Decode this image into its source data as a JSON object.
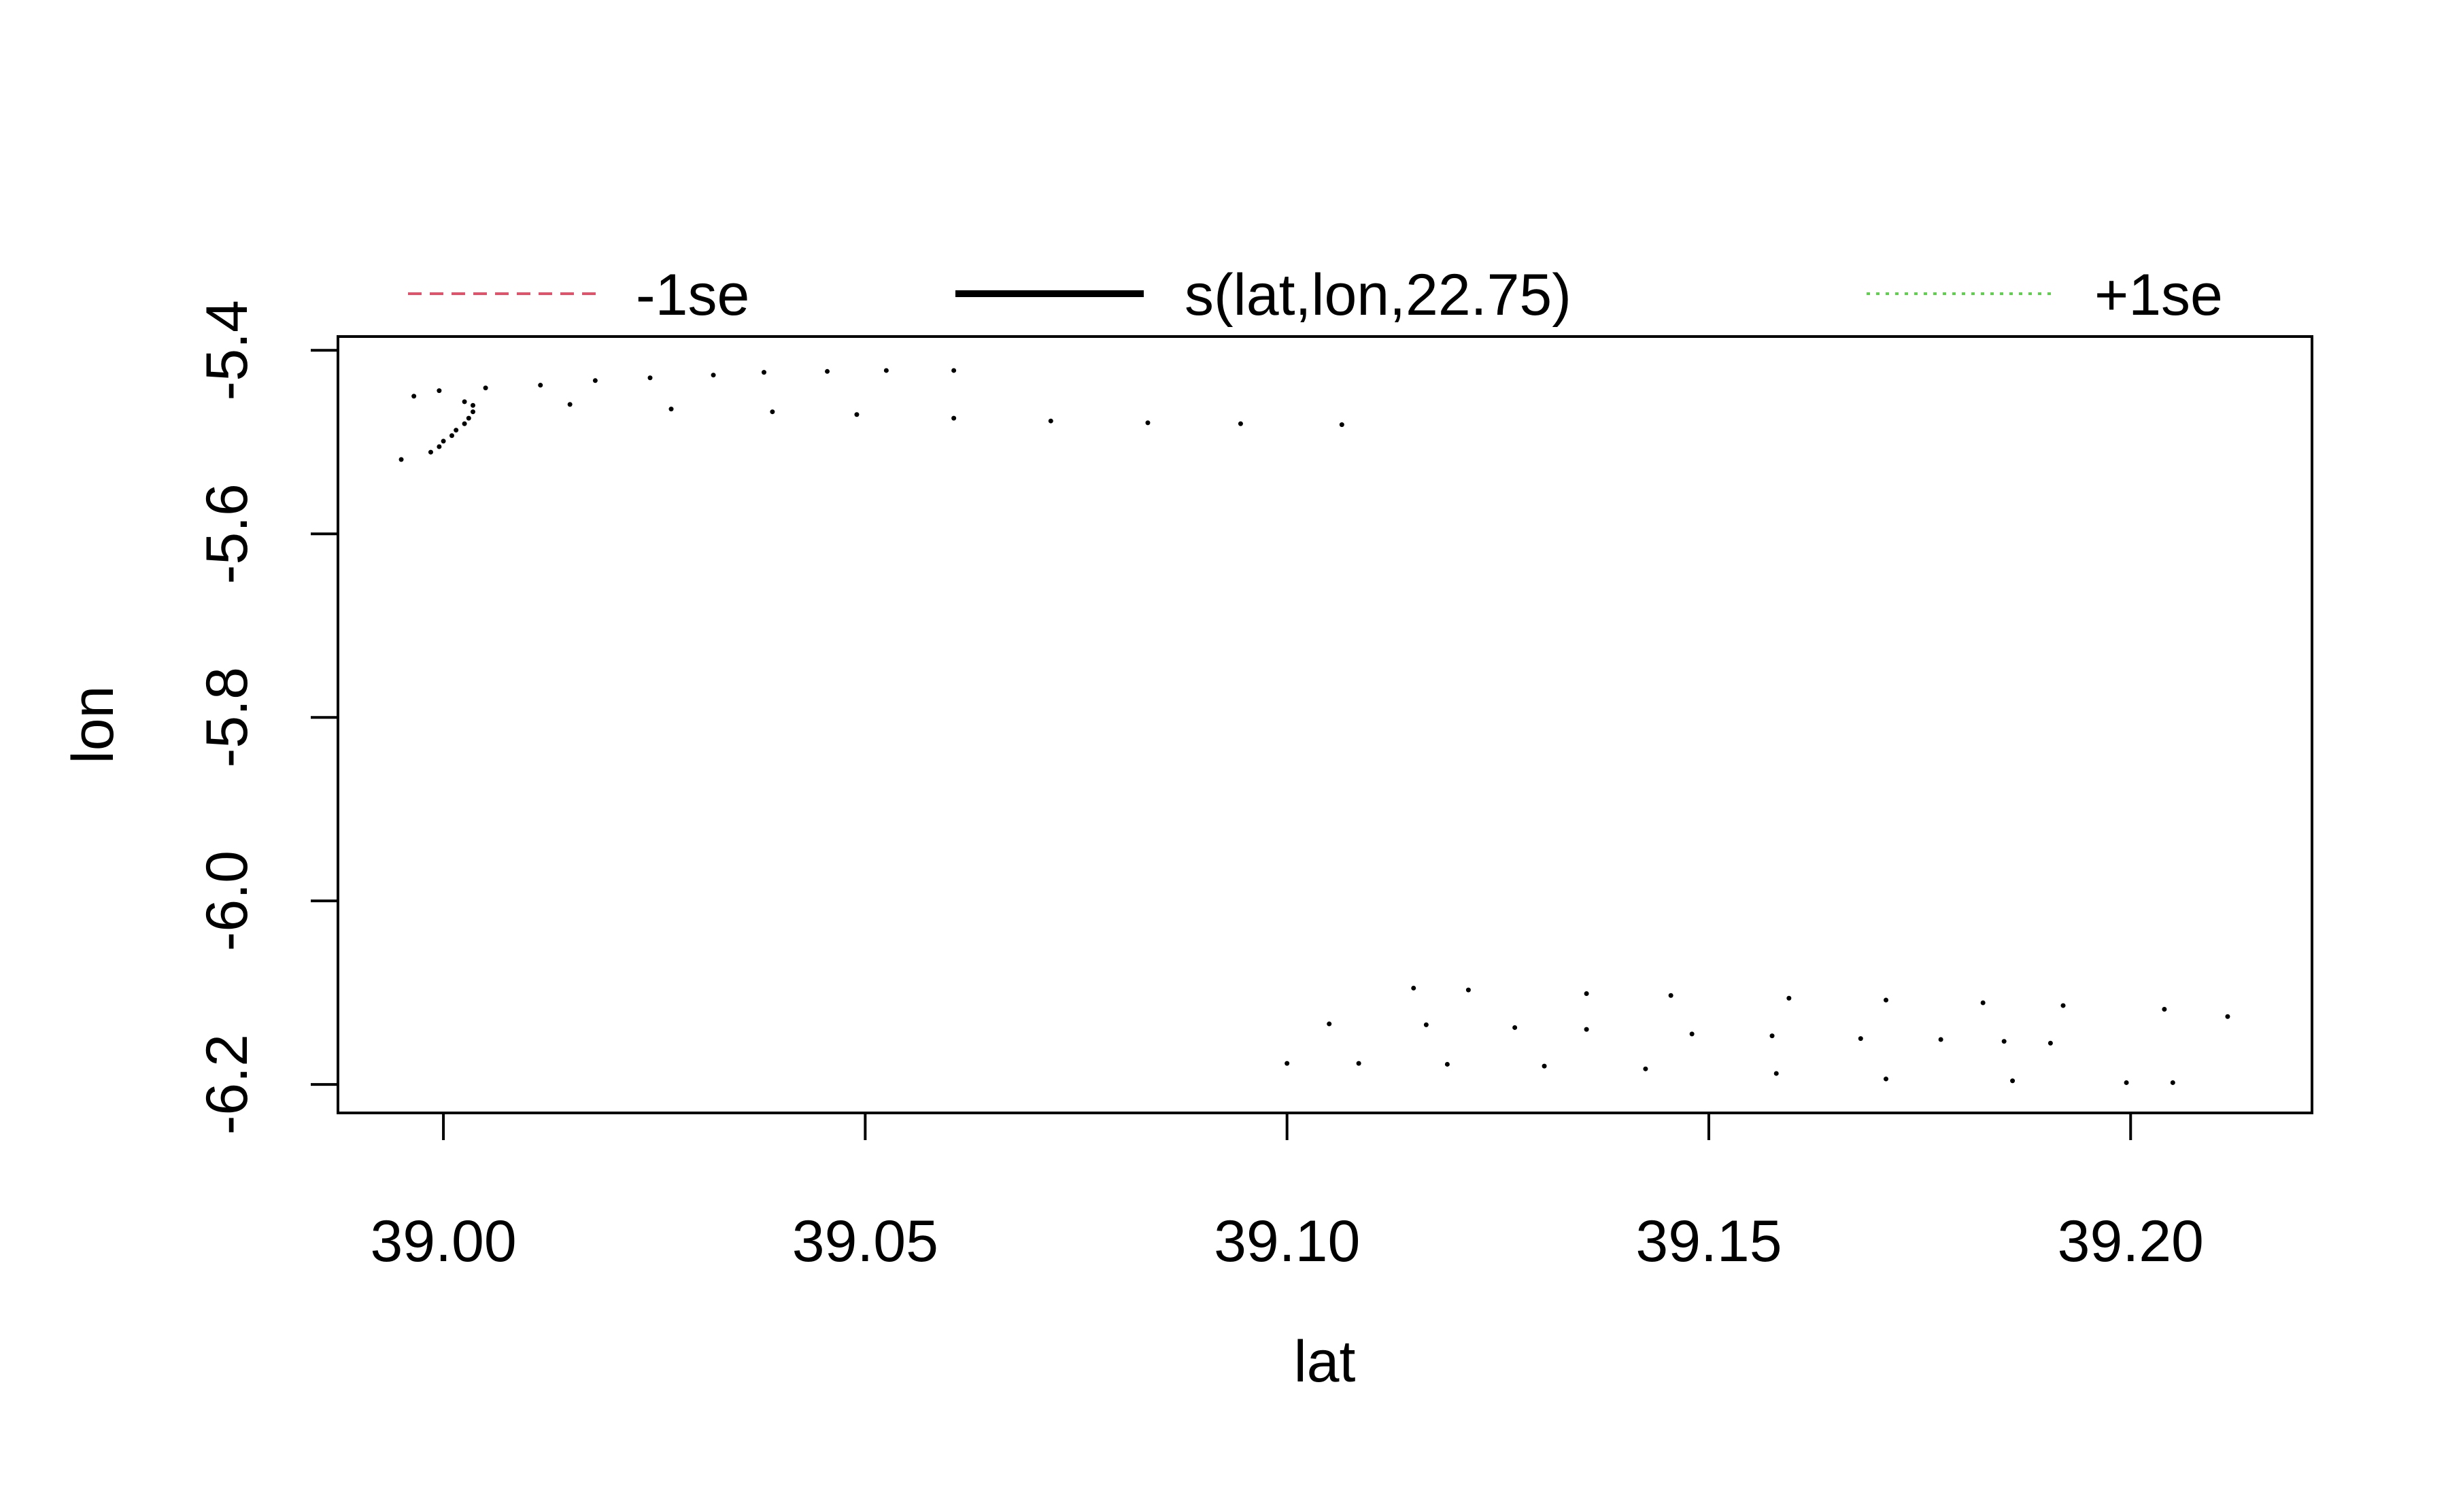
{
  "chart_data": {
    "type": "scatter",
    "title": "",
    "xlabel": "lat",
    "ylabel": "lon",
    "xlim": [
      38.9875,
      39.2215
    ],
    "ylim": [
      -6.231,
      -5.385
    ],
    "xticks": [
      39.0,
      39.05,
      39.1,
      39.15,
      39.2
    ],
    "xtick_labels": [
      "39.00",
      "39.05",
      "39.10",
      "39.15",
      "39.20"
    ],
    "yticks": [
      -5.4,
      -5.6,
      -5.8,
      -6.0,
      -6.2
    ],
    "ytick_labels": [
      "-5.4",
      "-5.6",
      "-5.8",
      "-6.0",
      "-6.2"
    ],
    "grid": false,
    "legend": {
      "placement": "top",
      "entries": [
        {
          "label": "-1se",
          "color": "#DF536B",
          "style": "dashed"
        },
        {
          "label": "s(lat,lon,22.75)",
          "color": "#000000",
          "style": "solid"
        },
        {
          "label": "+1se",
          "color": "#61D04F",
          "style": "dotted"
        }
      ]
    },
    "point_color": "#000000",
    "series": [
      {
        "name": "",
        "points": [
          [
            38.9995,
            -5.444
          ],
          [
            39.005,
            -5.441
          ],
          [
            39.0115,
            -5.438
          ],
          [
            39.018,
            -5.433
          ],
          [
            39.0245,
            -5.43
          ],
          [
            39.032,
            -5.427
          ],
          [
            39.038,
            -5.424
          ],
          [
            39.0455,
            -5.423
          ],
          [
            39.0525,
            -5.422
          ],
          [
            39.0605,
            -5.422
          ],
          [
            39.015,
            -5.459
          ],
          [
            39.027,
            -5.464
          ],
          [
            39.039,
            -5.467
          ],
          [
            39.049,
            -5.47
          ],
          [
            39.0605,
            -5.474
          ],
          [
            39.072,
            -5.477
          ],
          [
            39.0835,
            -5.479
          ],
          [
            39.0945,
            -5.48
          ],
          [
            39.1065,
            -5.481
          ],
          [
            38.9965,
            -5.45
          ],
          [
            39.0025,
            -5.456
          ],
          [
            39.0035,
            -5.46
          ],
          [
            39.0035,
            -5.467
          ],
          [
            39.003,
            -5.474
          ],
          [
            39.0025,
            -5.48
          ],
          [
            39.0015,
            -5.487
          ],
          [
            39.001,
            -5.493
          ],
          [
            39.0,
            -5.499
          ],
          [
            38.9995,
            -5.505
          ],
          [
            38.9985,
            -5.511
          ],
          [
            38.995,
            -5.519
          ]
        ]
      },
      {
        "name": "",
        "points": [
          [
            39.115,
            -6.095
          ],
          [
            39.1215,
            -6.097
          ],
          [
            39.1355,
            -6.101
          ],
          [
            39.1455,
            -6.103
          ],
          [
            39.1595,
            -6.106
          ],
          [
            39.171,
            -6.108
          ],
          [
            39.1825,
            -6.111
          ],
          [
            39.192,
            -6.114
          ],
          [
            39.204,
            -6.118
          ],
          [
            39.2115,
            -6.126
          ],
          [
            39.105,
            -6.134
          ],
          [
            39.1165,
            -6.135
          ],
          [
            39.127,
            -6.138
          ],
          [
            39.1355,
            -6.14
          ],
          [
            39.148,
            -6.145
          ],
          [
            39.1575,
            -6.147
          ],
          [
            39.168,
            -6.15
          ],
          [
            39.1775,
            -6.151
          ],
          [
            39.185,
            -6.153
          ],
          [
            39.1905,
            -6.155
          ],
          [
            39.1,
            -6.177
          ],
          [
            39.1085,
            -6.177
          ],
          [
            39.119,
            -6.178
          ],
          [
            39.1305,
            -6.18
          ],
          [
            39.1425,
            -6.183
          ],
          [
            39.158,
            -6.188
          ],
          [
            39.171,
            -6.194
          ],
          [
            39.186,
            -6.196
          ],
          [
            39.1995,
            -6.198
          ],
          [
            39.205,
            -6.198
          ]
        ]
      }
    ]
  }
}
